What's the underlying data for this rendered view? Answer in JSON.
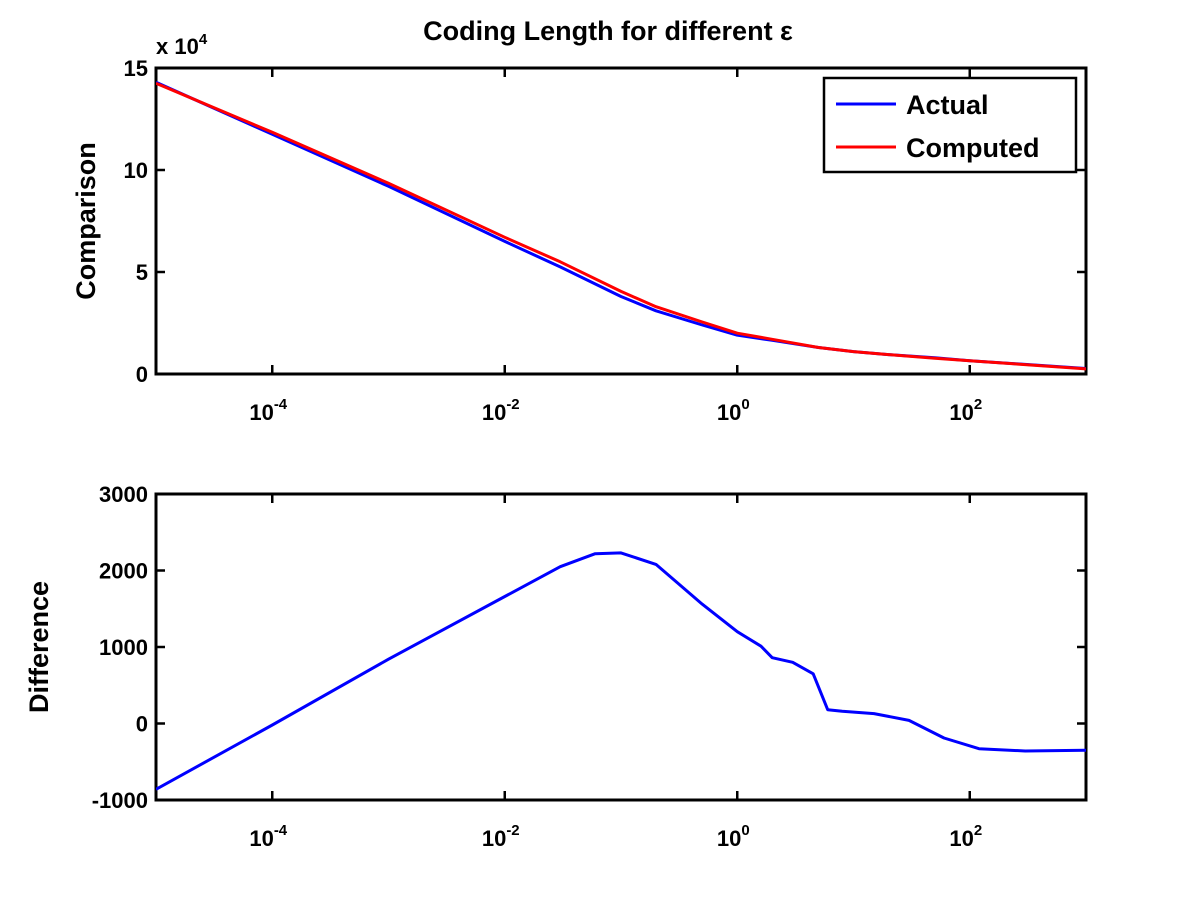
{
  "figure": {
    "title": "Coding Length for different ε"
  },
  "chart_data": [
    {
      "type": "line",
      "xlabel": "",
      "ylabel": "Comparison",
      "xscale": "log",
      "xlim": [
        1e-05,
        1000
      ],
      "ylim": [
        0,
        150000
      ],
      "y_exponent_label": "x 10",
      "y_exponent_power": "4",
      "xticks": [
        {
          "value": 0.0001,
          "base": "10",
          "exp": "-4"
        },
        {
          "value": 0.01,
          "base": "10",
          "exp": "-2"
        },
        {
          "value": 1,
          "base": "10",
          "exp": "0"
        },
        {
          "value": 100,
          "base": "10",
          "exp": "2"
        }
      ],
      "yticks": [
        {
          "value": 0,
          "label": "0"
        },
        {
          "value": 50000,
          "label": "5"
        },
        {
          "value": 100000,
          "label": "10"
        },
        {
          "value": 150000,
          "label": "15"
        }
      ],
      "legend": {
        "position": "top-right"
      },
      "grid": false,
      "series": [
        {
          "name": "Actual",
          "color": "#0000ff",
          "points": [
            [
              1e-05,
              143000
            ],
            [
              0.0001,
              117500
            ],
            [
              0.001,
              92000
            ],
            [
              0.01,
              65000
            ],
            [
              0.03,
              52500
            ],
            [
              0.1,
              38000
            ],
            [
              0.2,
              31000
            ],
            [
              0.5,
              24000
            ],
            [
              1,
              19000
            ],
            [
              2,
              16500
            ],
            [
              5,
              13000
            ],
            [
              10,
              11000
            ],
            [
              20,
              9500
            ],
            [
              50,
              8000
            ],
            [
              100,
              6500
            ],
            [
              1000,
              2700
            ]
          ]
        },
        {
          "name": "Computed",
          "color": "#ff0000",
          "points": [
            [
              1e-05,
              142500
            ],
            [
              0.0001,
              118500
            ],
            [
              0.001,
              93500
            ],
            [
              0.01,
              67000
            ],
            [
              0.03,
              55000
            ],
            [
              0.1,
              40500
            ],
            [
              0.2,
              33000
            ],
            [
              0.5,
              25500
            ],
            [
              1,
              20000
            ],
            [
              2,
              17000
            ],
            [
              5,
              13000
            ],
            [
              10,
              11000
            ],
            [
              20,
              9500
            ],
            [
              50,
              7700
            ],
            [
              100,
              6500
            ],
            [
              1000,
              2500
            ]
          ]
        }
      ]
    },
    {
      "type": "line",
      "xlabel": "",
      "ylabel": "Difference",
      "xscale": "log",
      "xlim": [
        1e-05,
        1000
      ],
      "ylim": [
        -1000,
        3000
      ],
      "xticks": [
        {
          "value": 0.0001,
          "base": "10",
          "exp": "-4"
        },
        {
          "value": 0.01,
          "base": "10",
          "exp": "-2"
        },
        {
          "value": 1,
          "base": "10",
          "exp": "0"
        },
        {
          "value": 100,
          "base": "10",
          "exp": "2"
        }
      ],
      "yticks": [
        {
          "value": -1000,
          "label": "-1000"
        },
        {
          "value": 0,
          "label": "0"
        },
        {
          "value": 1000,
          "label": "1000"
        },
        {
          "value": 2000,
          "label": "2000"
        },
        {
          "value": 3000,
          "label": "3000"
        }
      ],
      "grid": false,
      "series": [
        {
          "color": "#0000ff",
          "points": [
            [
              1e-05,
              -860
            ],
            [
              0.0001,
              -20
            ],
            [
              0.001,
              840
            ],
            [
              0.01,
              1660
            ],
            [
              0.03,
              2050
            ],
            [
              0.06,
              2220
            ],
            [
              0.1,
              2230
            ],
            [
              0.2,
              2080
            ],
            [
              0.5,
              1560
            ],
            [
              1,
              1200
            ],
            [
              1.6,
              1010
            ],
            [
              2,
              860
            ],
            [
              3,
              800
            ],
            [
              4.5,
              650
            ],
            [
              6,
              180
            ],
            [
              8,
              160
            ],
            [
              15,
              130
            ],
            [
              30,
              40
            ],
            [
              60,
              -190
            ],
            [
              120,
              -330
            ],
            [
              300,
              -360
            ],
            [
              1000,
              -350
            ]
          ]
        }
      ]
    }
  ]
}
